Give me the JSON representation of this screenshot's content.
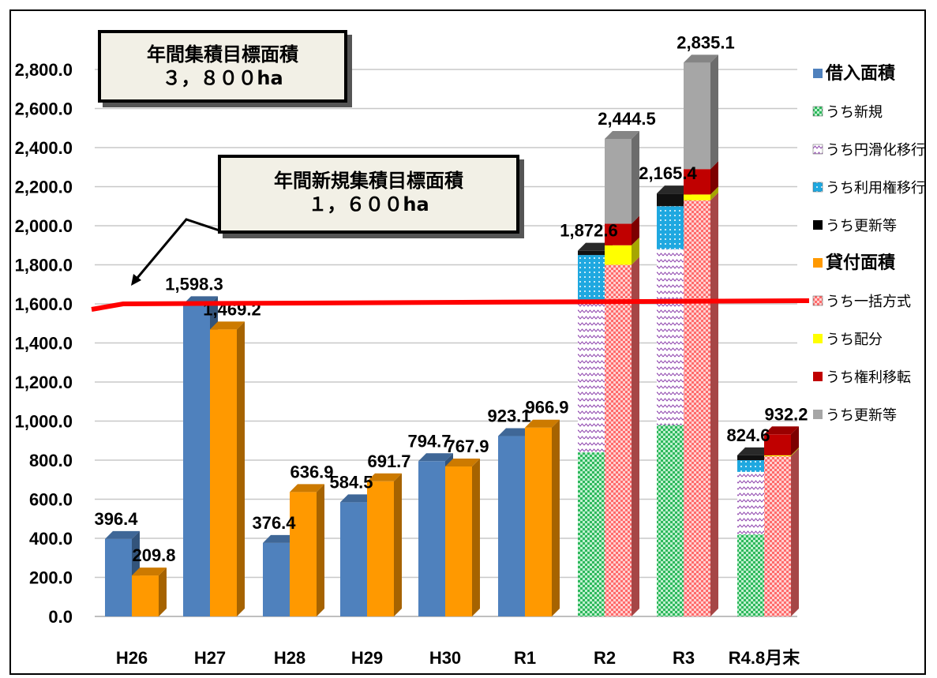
{
  "callouts": {
    "total": {
      "line1": "年間集積目標面積",
      "line2": "３，８００ha"
    },
    "new": {
      "line1": "年間新規集積目標面積",
      "line2": "１，６００ha"
    }
  },
  "chart_data": {
    "type": "bar",
    "title": "",
    "xlabel": "",
    "ylabel": "",
    "ylim": [
      0,
      2800
    ],
    "y_ticks": [
      "0.0",
      "200.0",
      "400.0",
      "600.0",
      "800.0",
      "1,000.0",
      "1,200.0",
      "1,400.0",
      "1,600.0",
      "1,800.0",
      "2,000.0",
      "2,200.0",
      "2,400.0",
      "2,600.0",
      "2,800.0"
    ],
    "grid": true,
    "legend_position": "right",
    "categories": [
      "H26",
      "H27",
      "H28",
      "H29",
      "H30",
      "R1",
      "R2",
      "R3",
      "R4.8月末"
    ],
    "target_line": {
      "value": 1600,
      "color": "#ff0000"
    },
    "borrow_totals": [
      396.4,
      1598.3,
      376.4,
      584.5,
      794.7,
      923.1,
      1872.6,
      2165.4,
      824.6
    ],
    "lend_totals": [
      209.8,
      1469.2,
      636.9,
      691.7,
      767.9,
      966.9,
      2444.5,
      2835.1,
      932.2
    ],
    "borrow_labels": [
      "396.4",
      "1,598.3",
      "376.4",
      "584.5",
      "794.7",
      "923.1",
      "1,872.6",
      "2,165.4",
      "824.6"
    ],
    "lend_labels": [
      "209.8",
      "1,469.2",
      "636.9",
      "691.7",
      "767.9",
      "966.9",
      "2,444.5",
      "2,835.1",
      "932.2"
    ],
    "borrow_breakdown": {
      "new": [
        null,
        null,
        null,
        null,
        null,
        null,
        840,
        980,
        420
      ],
      "smooth_transfer": [
        null,
        null,
        null,
        null,
        null,
        null,
        780,
        900,
        320
      ],
      "use_right_transfer": [
        null,
        null,
        null,
        null,
        null,
        null,
        230,
        220,
        60
      ],
      "renewal": [
        null,
        null,
        null,
        null,
        null,
        null,
        22,
        65,
        25
      ]
    },
    "lend_breakdown": {
      "lump_sum": [
        null,
        null,
        null,
        null,
        null,
        null,
        1800,
        2130,
        820
      ],
      "allocation": [
        null,
        null,
        null,
        null,
        null,
        null,
        100,
        30,
        5
      ],
      "rights_transfer": [
        null,
        null,
        null,
        null,
        null,
        null,
        110,
        130,
        107.2
      ],
      "renewal": [
        null,
        null,
        null,
        null,
        null,
        null,
        434.5,
        545.1,
        0
      ]
    },
    "legend": [
      {
        "label": "借入面積",
        "color": "#4f81bd",
        "pattern": "solid",
        "bold": true
      },
      {
        "label": "うち新規",
        "color": "#2eb85c",
        "pattern": "dots"
      },
      {
        "label": "うち円滑化移行",
        "color": "#9b59b6",
        "pattern": "zigzag"
      },
      {
        "label": "うち利用権移行",
        "color": "#1fa8e0",
        "pattern": "dots"
      },
      {
        "label": "うち更新等",
        "color": "#000000",
        "pattern": "solid"
      },
      {
        "label": "貸付面積",
        "color": "#ff9900",
        "pattern": "solid",
        "bold": true
      },
      {
        "label": "うち一括方式",
        "color": "#ff6666",
        "pattern": "dots"
      },
      {
        "label": "うち配分",
        "color": "#ffff00",
        "pattern": "solid"
      },
      {
        "label": "うち権利移転",
        "color": "#c00000",
        "pattern": "solid"
      },
      {
        "label": "うち更新等",
        "color": "#a6a6a6",
        "pattern": "solid"
      }
    ]
  }
}
